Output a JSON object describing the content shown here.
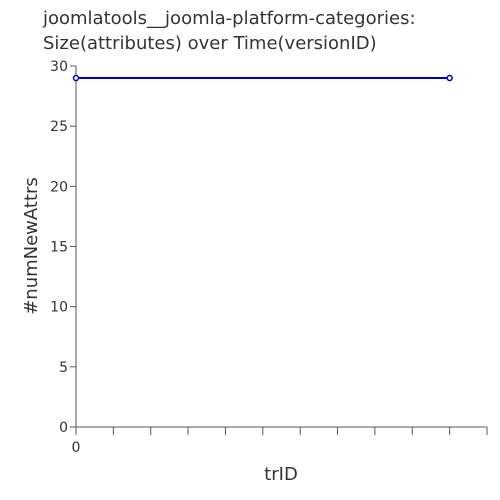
{
  "chart_data": {
    "type": "line",
    "title_lines": [
      "joomlatools__joomla-platform-categories:",
      "Size(attributes) over Time(versionID)"
    ],
    "xlabel": "trID",
    "ylabel": "#numNewAttrs",
    "xlim": [
      0,
      11
    ],
    "ylim": [
      0,
      30
    ],
    "x_tick_labels": [
      "0"
    ],
    "y_ticks": [
      0,
      5,
      10,
      15,
      20,
      25,
      30
    ],
    "y_tick_labels": [
      "0",
      "5",
      "10",
      "15",
      "20",
      "25",
      "30"
    ],
    "grid": false,
    "series": [
      {
        "x": [
          0,
          10
        ],
        "values": [
          29,
          29
        ],
        "color": "#0000cc"
      }
    ],
    "colors": {
      "axis": "#555555",
      "text": "#333333",
      "line": "#0000cc"
    }
  }
}
